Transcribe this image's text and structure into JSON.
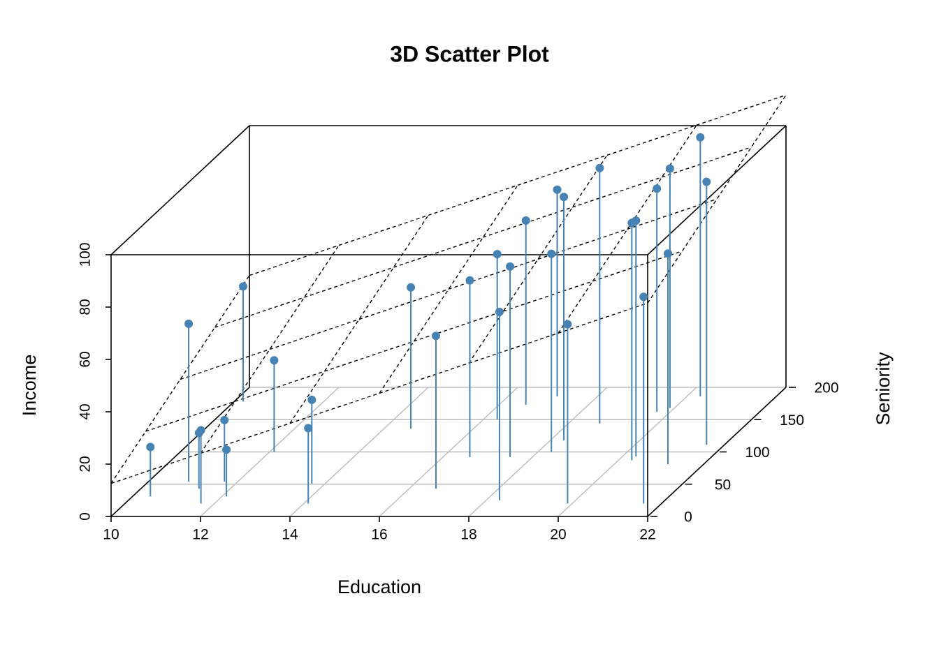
{
  "chart_data": {
    "type": "scatter3d",
    "title": "3D Scatter Plot",
    "xlabel": "Education",
    "ylabel": "Seniority",
    "zlabel": "Income",
    "x": [
      10.4,
      10.9,
      11.7,
      11.3,
      11.7,
      12.1,
      10.2,
      12.1,
      14.1,
      13.7,
      14.6,
      16.6,
      16.6,
      18.3,
      16.3,
      17.5,
      16.6,
      18.3,
      17.1,
      18.3,
      19.9,
      18.7,
      20.3,
      20.3,
      21.6,
      19.7,
      21.2,
      19.9,
      20.3,
      21.6
    ],
    "y": [
      31,
      54,
      20,
      43,
      54,
      31,
      178,
      100,
      20,
      51,
      136,
      43,
      92,
      25,
      151,
      92,
      173,
      100,
      186,
      118,
      20,
      144,
      87,
      93,
      20,
      162,
      81,
      168,
      186,
      111
    ],
    "z": [
      18.9,
      60.3,
      28,
      21.3,
      23.5,
      17.9,
      44,
      35,
      28.8,
      32,
      54,
      58.4,
      67.5,
      72,
      63,
      72.8,
      70.4,
      75.7,
      79,
      93,
      68.5,
      97.6,
      90.7,
      90.1,
      79,
      85.3,
      80.5,
      91.5,
      99,
      100.5
    ],
    "color": "#4682b4",
    "xlim": [
      10,
      22
    ],
    "xticks": [
      10,
      12,
      14,
      16,
      18,
      20,
      22
    ],
    "ylim": [
      0,
      200
    ],
    "yticks": [
      0,
      50,
      100,
      150,
      200
    ],
    "zlim": [
      0,
      100
    ],
    "zticks": [
      0,
      20,
      40,
      60,
      80,
      100
    ],
    "grid": true,
    "regression_plane": true
  }
}
